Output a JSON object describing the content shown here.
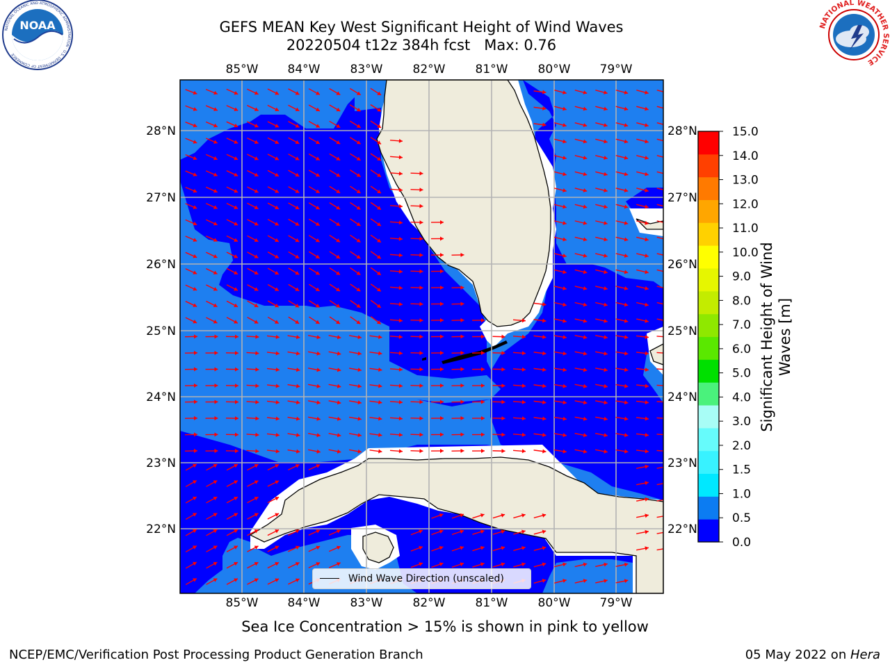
{
  "title": {
    "line1": "GEFS MEAN Key West Significant Height of Wind Waves",
    "line2": "20220504 t12z 384h fcst   Max: 0.76"
  },
  "logos": {
    "left": {
      "text": "NOAA",
      "ring": "NATIONAL OCEANIC AND ATMOSPHERIC ADMINISTRATION · U.S. DEPARTMENT OF COMMERCE"
    },
    "right": {
      "ring": "NATIONAL WEATHER SERVICE"
    }
  },
  "axes": {
    "lon_labels": [
      "85°W",
      "84°W",
      "83°W",
      "82°W",
      "81°W",
      "80°W",
      "79°W"
    ],
    "lat_labels": [
      "28°N",
      "27°N",
      "26°N",
      "25°N",
      "24°N",
      "23°N",
      "22°N"
    ]
  },
  "map_legend": {
    "label": "Wind Wave Direction (unscaled)"
  },
  "colorbar": {
    "label": "Significant Height of Wind Waves [m]",
    "levels": [
      0.0,
      0.5,
      1.0,
      1.5,
      2.0,
      3.0,
      4.0,
      5.0,
      6.0,
      7.0,
      8.0,
      9.0,
      10.0,
      11.0,
      12.0,
      13.0,
      14.0,
      15.0
    ],
    "tick_labels": [
      "0.0",
      "0.5",
      "1.0",
      "1.5",
      "2.0",
      "3.0",
      "4.0",
      "5.0",
      "6.0",
      "7.0",
      "8.0",
      "9.0",
      "10.0",
      "11.0",
      "12.0",
      "13.0",
      "14.0",
      "15.0"
    ],
    "colors": [
      "#0000ff",
      "#0c7cf2",
      "#00e8ff",
      "#38f2ff",
      "#66fbfb",
      "#a8fdf6",
      "#4af27c",
      "#00e000",
      "#5ae800",
      "#8fe800",
      "#c3ec00",
      "#e6f600",
      "#ffff00",
      "#ffd100",
      "#ffa600",
      "#ff7a00",
      "#ff4000",
      "#ff0000"
    ]
  },
  "colors": {
    "ocean_low": "#0000ff",
    "ocean_mid": "#1e7ff0",
    "land": "#efecdc",
    "arrow": "#ff0000",
    "grid": "#b3b3b3"
  },
  "caption": "Sea Ice Concentration > 15% is shown in pink to yellow",
  "footer": {
    "left": "NCEP/EMC/Verification Post Processing Product Generation Branch",
    "right_date": "05 May 2022 on ",
    "right_host": "Hera"
  }
}
